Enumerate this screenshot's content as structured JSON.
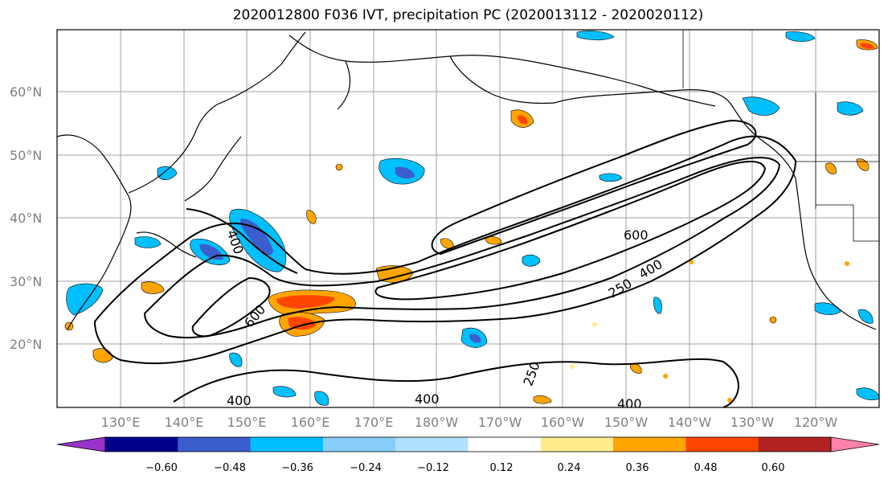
{
  "title": "2020012800 F036 IVT, precipitation PC (2020013112 - 2020020112)",
  "map": {
    "lat_labels": [
      "60°N",
      "50°N",
      "40°N",
      "30°N",
      "20°N"
    ],
    "lon_labels": [
      "130°E",
      "140°E",
      "150°E",
      "160°E",
      "170°E",
      "180°W",
      "170°W",
      "160°W",
      "150°W",
      "140°W",
      "130°W",
      "120°W"
    ],
    "contour_labels": [
      "600",
      "250",
      "400",
      "400",
      "600",
      "400",
      "400",
      "400",
      "250"
    ]
  },
  "colorbar": {
    "colors": [
      "#9932cc",
      "#00008b",
      "#3a5fcd",
      "#00bfff",
      "#87cefa",
      "#b0e2ff",
      "#ffffff",
      "#ffec8b",
      "#ffa500",
      "#ff4500",
      "#b22222",
      "#ff82ab"
    ],
    "tick_labels": [
      "−0.60",
      "−0.48",
      "−0.36",
      "−0.24",
      "−0.12",
      "0.12",
      "0.24",
      "0.36",
      "0.48",
      "0.60"
    ]
  },
  "chart_data": {
    "type": "map",
    "title": "2020012800 F036 IVT, precipitation PC (2020013112 - 2020020112)",
    "ivt_contour_levels": [
      250,
      400,
      600
    ],
    "precip_pc_levels": [
      -0.6,
      -0.48,
      -0.36,
      -0.24,
      -0.12,
      0.12,
      0.24,
      0.36,
      0.48,
      0.6
    ],
    "extent": {
      "lon": [
        "~122°E",
        "~115°W"
      ],
      "lat": [
        "~10°N",
        "~70°N"
      ]
    },
    "grid": true
  }
}
